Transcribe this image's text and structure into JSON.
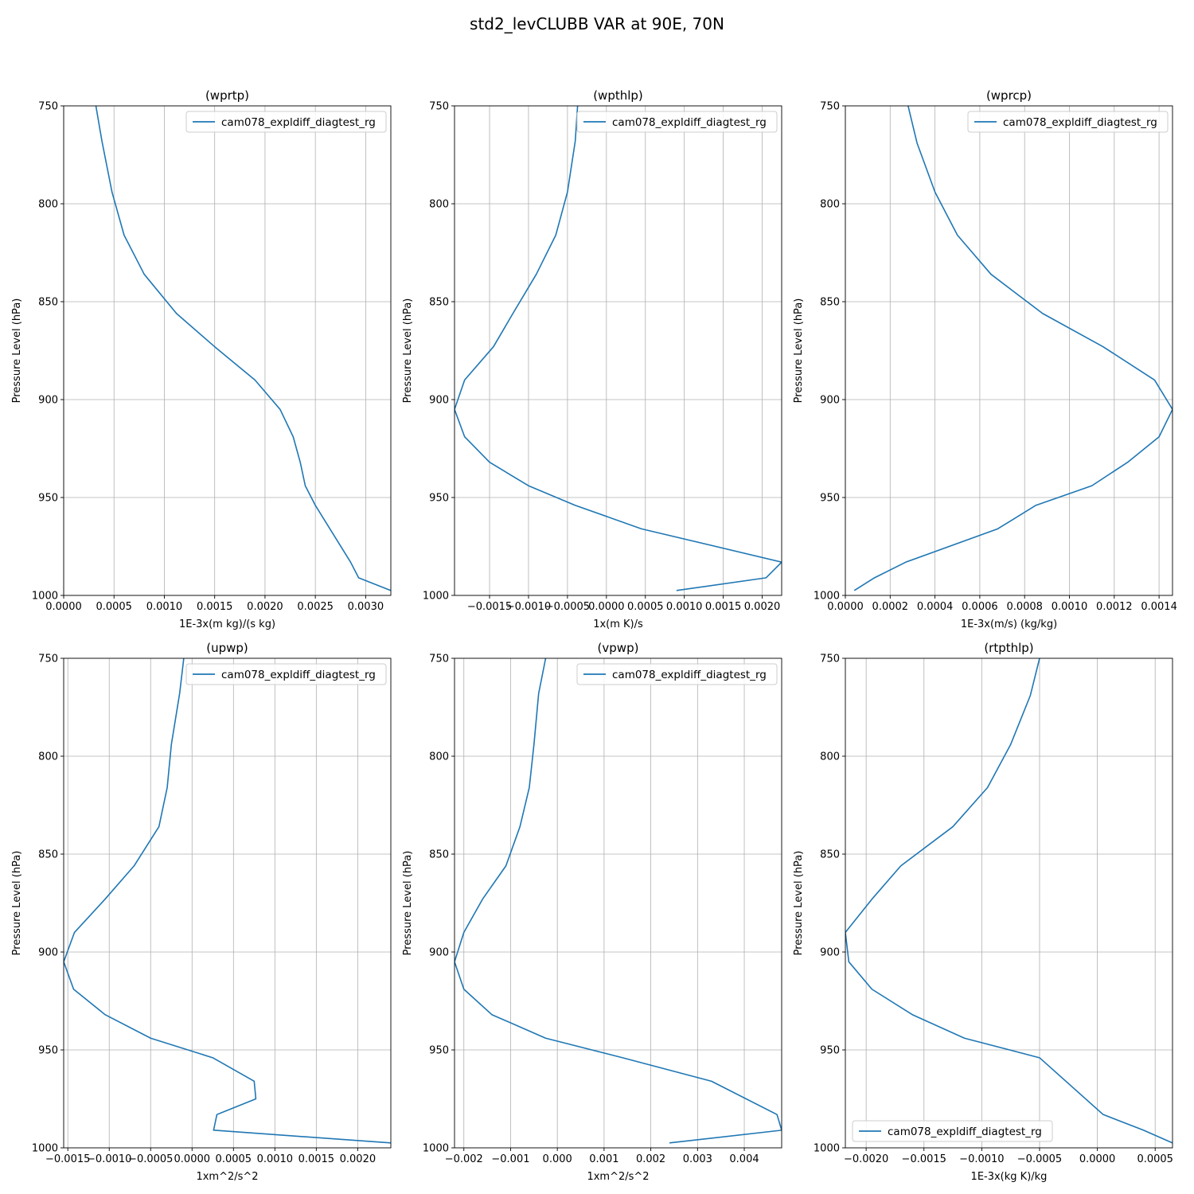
{
  "title": "std2_levCLUBB VAR at 90E, 70N",
  "colors": {
    "series": "#1f77b4",
    "grid": "#b0b0b0",
    "axis": "#000000",
    "legend_border": "#cccccc"
  },
  "y_label": "Pressure Level (hPa)",
  "chart_data": [
    {
      "type": "line",
      "title": "(wprtp)",
      "xlabel": "1E-3x(m kg)/(s kg)",
      "ylabel": "Pressure Level (hPa)",
      "xlim": [
        0,
        0.00325
      ],
      "ylim": [
        1000,
        750
      ],
      "xticks": [
        0,
        0.0005,
        0.001,
        0.0015,
        0.002,
        0.0025,
        0.003
      ],
      "xtick_labels": [
        "0.0000",
        "0.0005",
        "0.0010",
        "0.0015",
        "0.0020",
        "0.0025",
        "0.0030"
      ],
      "yticks": [
        750,
        800,
        850,
        900,
        950,
        1000
      ],
      "ytick_labels": [
        "750",
        "800",
        "850",
        "900",
        "950",
        "1000"
      ],
      "grid": true,
      "legend_position": "upper right",
      "series": [
        {
          "name": "cam078_expldiff_diagtest_rg",
          "x": [
            0.00032,
            0.00038,
            0.00048,
            0.0006,
            0.0008,
            0.00112,
            0.0015,
            0.0019,
            0.00215,
            0.00228,
            0.00235,
            0.0024,
            0.0025,
            0.00285,
            0.00293,
            0.00325
          ],
          "y": [
            750,
            768,
            794,
            816,
            836,
            856,
            873,
            890,
            905,
            919,
            932,
            944,
            954,
            983,
            991,
            997.5
          ]
        }
      ]
    },
    {
      "type": "line",
      "title": "(wpthlp)",
      "xlabel": "1x(m K)/s",
      "ylabel": "Pressure Level (hPa)",
      "xlim": [
        -0.00195,
        0.00225
      ],
      "ylim": [
        1000,
        750
      ],
      "xticks": [
        -0.0015,
        -0.001,
        -0.0005,
        0,
        0.0005,
        0.001,
        0.0015,
        0.002
      ],
      "xtick_labels": [
        "−0.0015",
        "−0.0010",
        "−0.0005",
        "0.0000",
        "0.0005",
        "0.0010",
        "0.0015",
        "0.0020"
      ],
      "yticks": [
        750,
        800,
        850,
        900,
        950,
        1000
      ],
      "ytick_labels": [
        "750",
        "800",
        "850",
        "900",
        "950",
        "1000"
      ],
      "grid": true,
      "legend_position": "upper right",
      "series": [
        {
          "name": "cam078_expldiff_diagtest_rg",
          "x": [
            -0.00037,
            -0.0004,
            -0.0005,
            -0.00065,
            -0.0009,
            -0.0012,
            -0.00145,
            -0.00182,
            -0.00195,
            -0.00182,
            -0.0015,
            -0.001,
            -0.0004,
            0.00045,
            0.00225,
            0.00205,
            0.0009
          ],
          "y": [
            750,
            768,
            794,
            816,
            836,
            856,
            873,
            890,
            905,
            919,
            932,
            944,
            954,
            966,
            983,
            991,
            997.5
          ]
        }
      ]
    },
    {
      "type": "line",
      "title": "(wprcp)",
      "xlabel": "1E-3x(m/s) (kg/kg)",
      "ylabel": "Pressure Level (hPa)",
      "xlim": [
        0,
        0.00146
      ],
      "ylim": [
        1000,
        750
      ],
      "xticks": [
        0,
        0.0002,
        0.0004,
        0.0006,
        0.0008,
        0.001,
        0.0012,
        0.0014
      ],
      "xtick_labels": [
        "0.0000",
        "0.0002",
        "0.0004",
        "0.0006",
        "0.0008",
        "0.0010",
        "0.0012",
        "0.0014"
      ],
      "yticks": [
        750,
        800,
        850,
        900,
        950,
        1000
      ],
      "ytick_labels": [
        "750",
        "800",
        "850",
        "900",
        "950",
        "1000"
      ],
      "grid": true,
      "legend_position": "upper right",
      "series": [
        {
          "name": "cam078_expldiff_diagtest_rg",
          "x": [
            0.00028,
            0.00032,
            0.0004,
            0.0005,
            0.00065,
            0.00088,
            0.00115,
            0.00138,
            0.00146,
            0.0014,
            0.00126,
            0.0011,
            0.00085,
            0.00068,
            0.00027,
            0.00013,
            4e-05
          ],
          "y": [
            750,
            769,
            794,
            816,
            836,
            856,
            873,
            890,
            905,
            919,
            932,
            944,
            954,
            966,
            983,
            991,
            997.5
          ]
        }
      ]
    },
    {
      "type": "line",
      "title": "(upwp)",
      "xlabel": "1xm^2/s^2",
      "ylabel": "Pressure Level (hPa)",
      "xlim": [
        -0.00155,
        0.0024
      ],
      "ylim": [
        1000,
        750
      ],
      "xticks": [
        -0.0015,
        -0.001,
        -0.0005,
        0,
        0.0005,
        0.001,
        0.0015,
        0.002
      ],
      "xtick_labels": [
        "−0.0015",
        "−0.0010",
        "−0.0005",
        "0.0000",
        "0.0005",
        "0.0010",
        "0.0015",
        "0.0020"
      ],
      "yticks": [
        750,
        800,
        850,
        900,
        950,
        1000
      ],
      "ytick_labels": [
        "750",
        "800",
        "850",
        "900",
        "950",
        "1000"
      ],
      "grid": true,
      "legend_position": "upper right",
      "series": [
        {
          "name": "cam078_expldiff_diagtest_rg",
          "x": [
            -0.0001,
            -0.00015,
            -0.00025,
            -0.0003,
            -0.0004,
            -0.0007,
            -0.00105,
            -0.00142,
            -0.00155,
            -0.00143,
            -0.00105,
            -0.0005,
            0.00025,
            0.00075,
            0.00077,
            0.0003,
            0.00026,
            0.0024
          ],
          "y": [
            750,
            768,
            794,
            816,
            836,
            856,
            873,
            890,
            905,
            919,
            932,
            944,
            954,
            966,
            975,
            983,
            991,
            997.5
          ]
        }
      ]
    },
    {
      "type": "line",
      "title": "(vpwp)",
      "xlabel": "1xm^2/s^2",
      "ylabel": "Pressure Level (hPa)",
      "xlim": [
        -0.0022,
        0.0048
      ],
      "ylim": [
        1000,
        750
      ],
      "xticks": [
        -0.002,
        -0.001,
        0,
        0.001,
        0.002,
        0.003,
        0.004
      ],
      "xtick_labels": [
        "−0.002",
        "−0.001",
        "0.000",
        "0.001",
        "0.002",
        "0.003",
        "0.004"
      ],
      "yticks": [
        750,
        800,
        850,
        900,
        950,
        1000
      ],
      "ytick_labels": [
        "750",
        "800",
        "850",
        "900",
        "950",
        "1000"
      ],
      "grid": true,
      "legend_position": "upper right",
      "series": [
        {
          "name": "cam078_expldiff_diagtest_rg",
          "x": [
            -0.00025,
            -0.0004,
            -0.0005,
            -0.0006,
            -0.0008,
            -0.0011,
            -0.0016,
            -0.002,
            -0.0022,
            -0.002,
            -0.0014,
            -0.00025,
            0.0014,
            0.0033,
            0.0047,
            0.0048,
            0.0024
          ],
          "y": [
            750,
            768,
            794,
            816,
            836,
            856,
            873,
            890,
            905,
            919,
            932,
            944,
            954,
            966,
            983,
            991,
            997.5
          ]
        }
      ]
    },
    {
      "type": "line",
      "title": "(rtpthlp)",
      "xlabel": "1E-3x(kg K)/kg",
      "ylabel": "Pressure Level (hPa)",
      "xlim": [
        -0.00218,
        0.00065
      ],
      "ylim": [
        1000,
        750
      ],
      "xticks": [
        -0.002,
        -0.0015,
        -0.001,
        -0.0005,
        0,
        0.0005
      ],
      "xtick_labels": [
        "−0.0020",
        "−0.0015",
        "−0.0010",
        "−0.0005",
        "0.0000",
        "0.0005"
      ],
      "yticks": [
        750,
        800,
        850,
        900,
        950,
        1000
      ],
      "ytick_labels": [
        "750",
        "800",
        "850",
        "900",
        "950",
        "1000"
      ],
      "grid": true,
      "legend_position": "lower left",
      "series": [
        {
          "name": "cam078_expldiff_diagtest_rg",
          "x": [
            -0.0005,
            -0.00058,
            -0.00075,
            -0.00095,
            -0.00125,
            -0.0017,
            -0.00195,
            -0.00218,
            -0.00215,
            -0.00195,
            -0.0016,
            -0.00115,
            -0.0005,
            5e-05,
            0.0004,
            0.00065
          ],
          "y": [
            750,
            769,
            794,
            816,
            836,
            856,
            873,
            890,
            905,
            919,
            932,
            944,
            954,
            983,
            991,
            997.5
          ]
        }
      ]
    }
  ]
}
